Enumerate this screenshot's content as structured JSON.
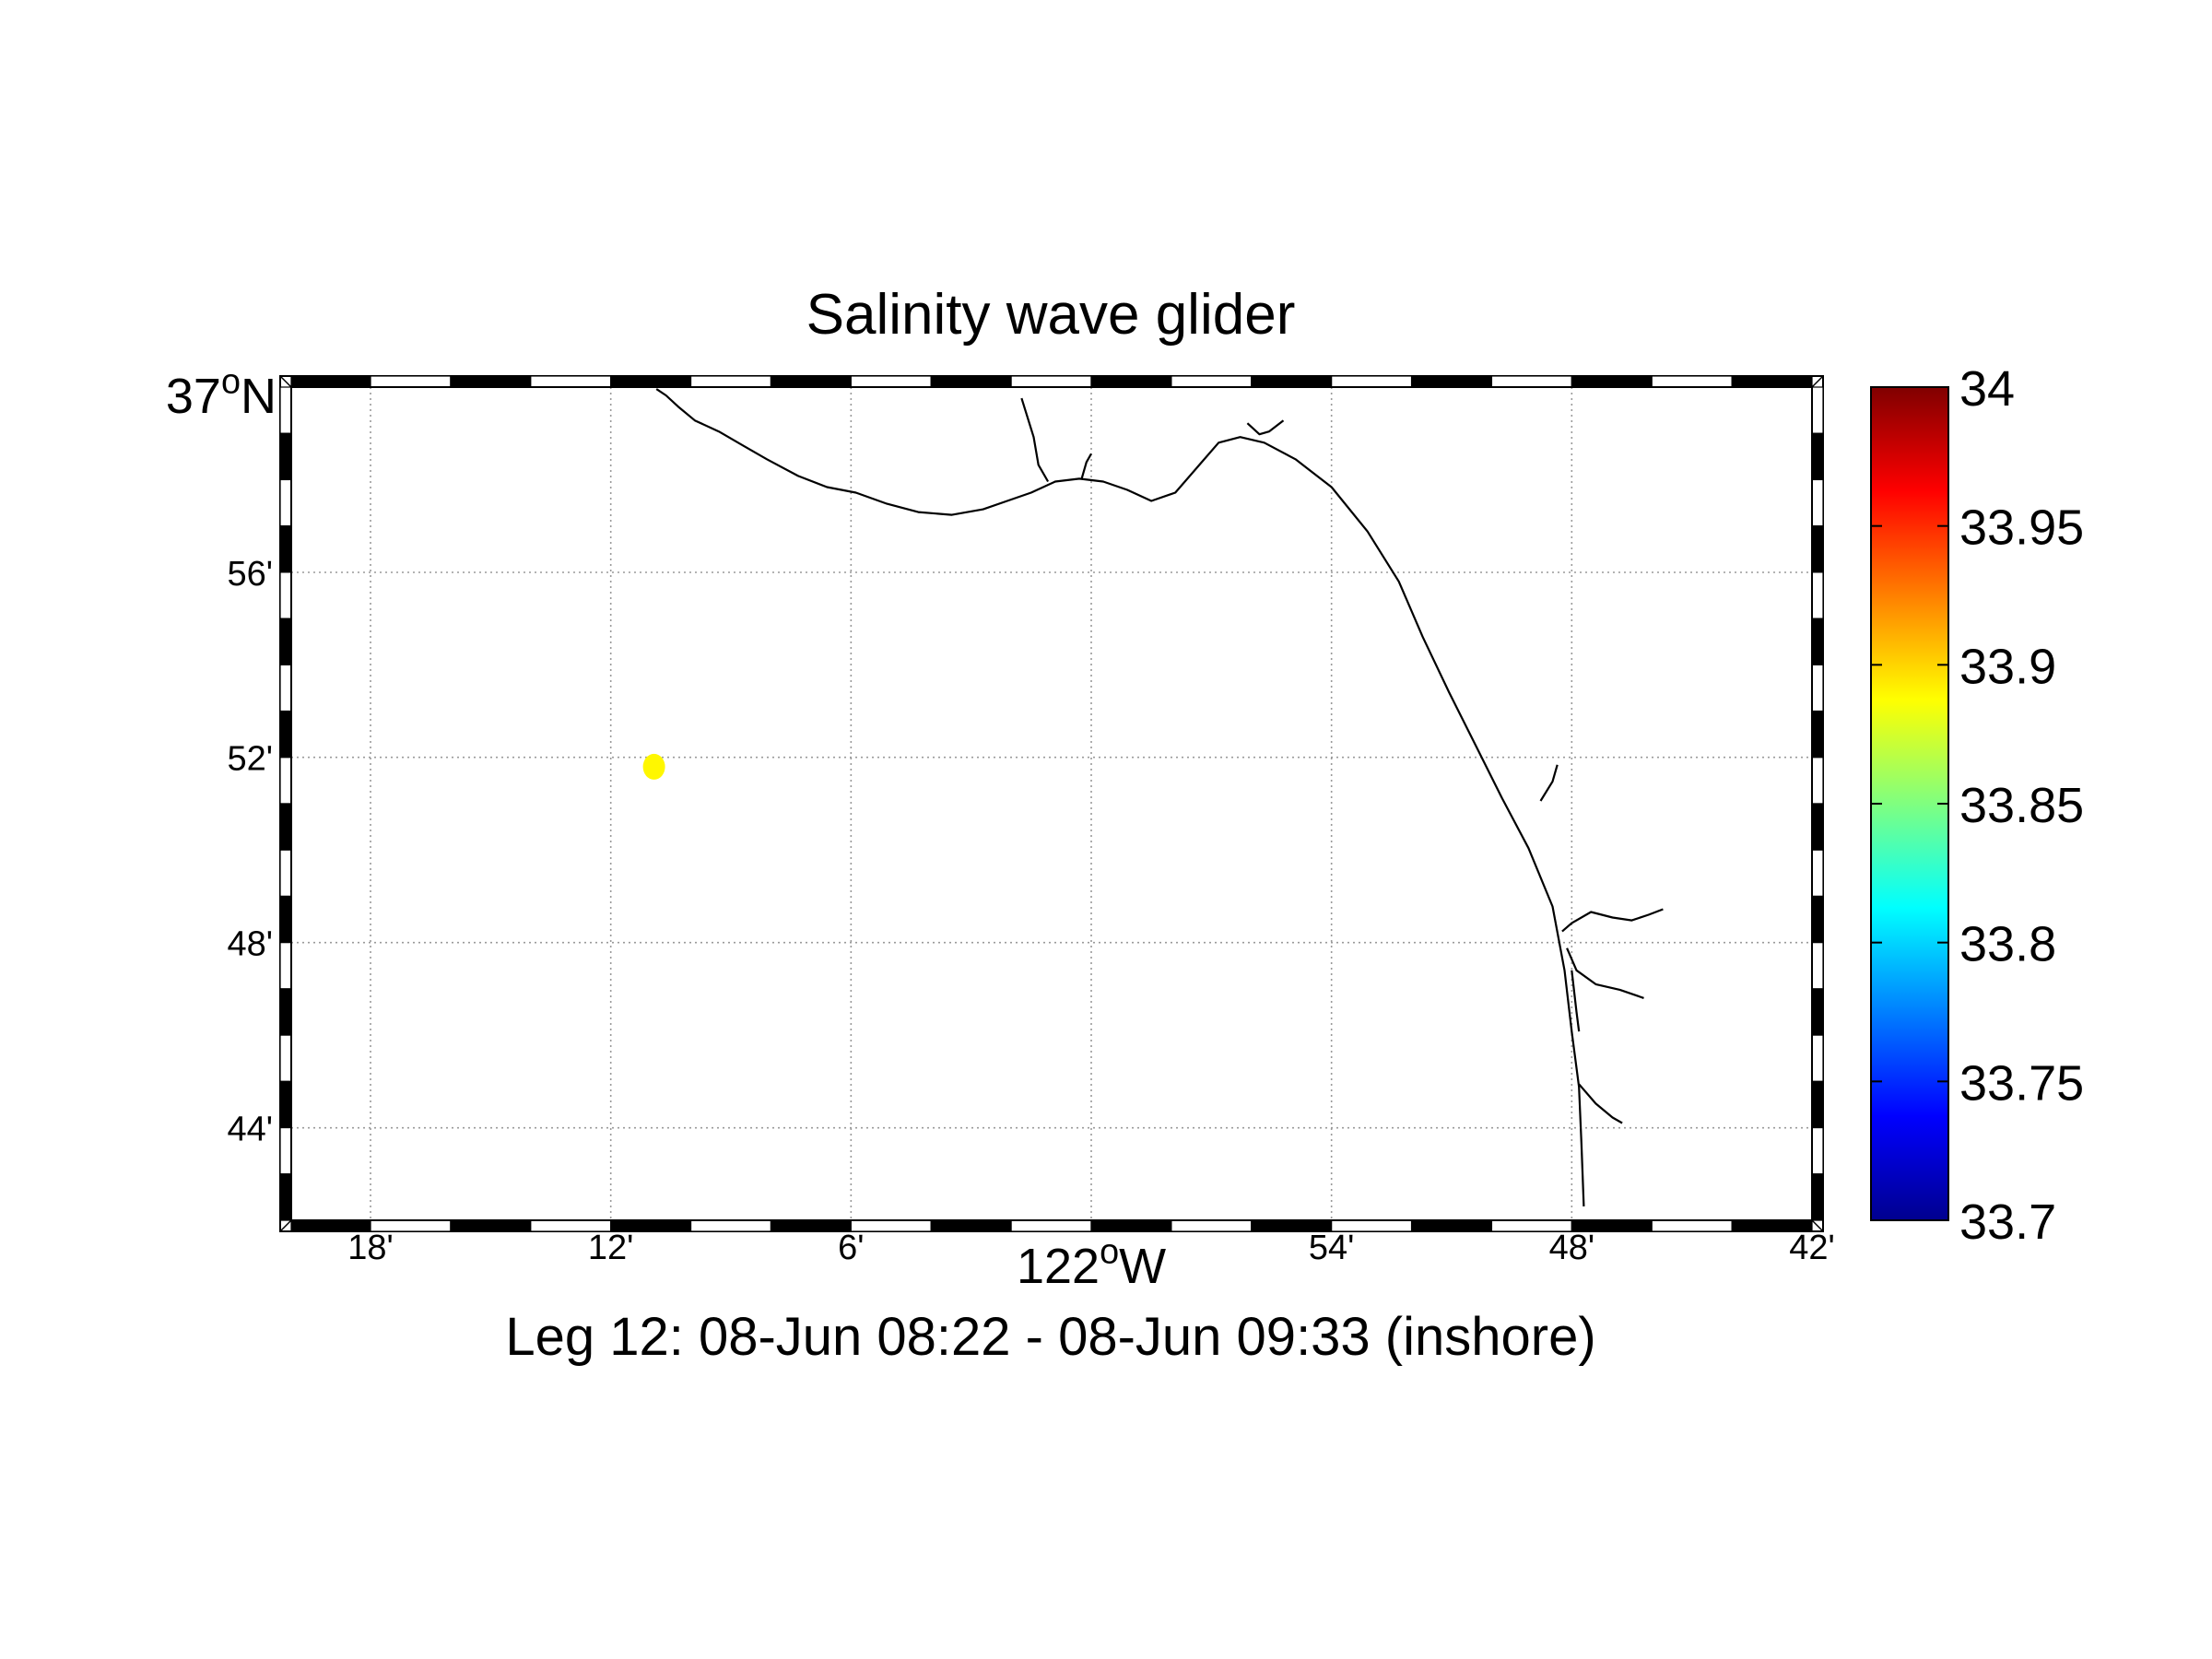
{
  "title": "Salinity wave glider",
  "subtitle": "Leg 12: 08-Jun 08:22 - 08-Jun 09:33 (inshore)",
  "map": {
    "lon_range": [
      -122.333,
      -121.7
    ],
    "lat_range": [
      36.7,
      37.0
    ],
    "grid": true,
    "x_ticks": [
      {
        "lon": -122.3,
        "label": "18'"
      },
      {
        "lon": -122.2,
        "label": "12'"
      },
      {
        "lon": -122.1,
        "label": "6'"
      },
      {
        "lon": -122.0,
        "label": "122",
        "sup": "o",
        "suffix": "W",
        "major": true
      },
      {
        "lon": -121.9,
        "label": "54'"
      },
      {
        "lon": -121.8,
        "label": "48'"
      },
      {
        "lon": -121.7,
        "label": "42'"
      }
    ],
    "y_ticks": [
      {
        "lat": 37.0,
        "label": "37",
        "sup": "o",
        "suffix": "N",
        "major": true
      },
      {
        "lat": 36.9333,
        "label": "56'"
      },
      {
        "lat": 36.8667,
        "label": "52'"
      },
      {
        "lat": 36.8,
        "label": "48'"
      },
      {
        "lat": 36.7333,
        "label": "44'"
      }
    ],
    "coastline": [
      [
        [
          -122.181,
          36.9993
        ],
        [
          -122.177,
          36.997
        ],
        [
          -122.172,
          36.993
        ],
        [
          -122.165,
          36.988
        ],
        [
          -122.155,
          36.984
        ],
        [
          -122.145,
          36.979
        ],
        [
          -122.135,
          36.974
        ],
        [
          -122.122,
          36.968
        ],
        [
          -122.11,
          36.964
        ],
        [
          -122.098,
          36.962
        ],
        [
          -122.085,
          36.958
        ],
        [
          -122.072,
          36.955
        ],
        [
          -122.058,
          36.954
        ],
        [
          -122.045,
          36.956
        ],
        [
          -122.035,
          36.959
        ],
        [
          -122.025,
          36.962
        ],
        [
          -122.015,
          36.966
        ],
        [
          -122.005,
          36.967
        ],
        [
          -121.995,
          36.966
        ],
        [
          -121.985,
          36.963
        ],
        [
          -121.975,
          36.959
        ],
        [
          -121.965,
          36.962
        ],
        [
          -121.955,
          36.972
        ],
        [
          -121.947,
          36.98
        ],
        [
          -121.938,
          36.982
        ],
        [
          -121.928,
          36.98
        ],
        [
          -121.915,
          36.974
        ],
        [
          -121.9,
          36.964
        ],
        [
          -121.885,
          36.948
        ],
        [
          -121.872,
          36.93
        ],
        [
          -121.862,
          36.91
        ],
        [
          -121.851,
          36.89
        ],
        [
          -121.84,
          36.871
        ],
        [
          -121.829,
          36.852
        ],
        [
          -121.818,
          36.834
        ],
        [
          -121.808,
          36.813
        ],
        [
          -121.803,
          36.79
        ],
        [
          -121.8,
          36.768
        ],
        [
          -121.797,
          36.748
        ],
        [
          -121.796,
          36.728
        ],
        [
          -121.795,
          36.705
        ]
      ],
      [
        [
          -122.029,
          36.996
        ],
        [
          -122.024,
          36.982
        ],
        [
          -122.022,
          36.972
        ],
        [
          -122.018,
          36.966
        ]
      ],
      [
        [
          -122.004,
          36.967
        ],
        [
          -122.002,
          36.973
        ],
        [
          -122.0,
          36.976
        ]
      ],
      [
        [
          -121.935,
          36.987
        ],
        [
          -121.93,
          36.983
        ],
        [
          -121.926,
          36.984
        ],
        [
          -121.92,
          36.988
        ]
      ],
      [
        [
          -121.813,
          36.851
        ],
        [
          -121.808,
          36.858
        ],
        [
          -121.806,
          36.864
        ]
      ],
      [
        [
          -121.804,
          36.804
        ],
        [
          -121.8,
          36.807
        ],
        [
          -121.792,
          36.811
        ],
        [
          -121.783,
          36.809
        ],
        [
          -121.775,
          36.808
        ],
        [
          -121.768,
          36.81
        ],
        [
          -121.762,
          36.812
        ]
      ],
      [
        [
          -121.802,
          36.798
        ],
        [
          -121.798,
          36.79
        ],
        [
          -121.79,
          36.785
        ],
        [
          -121.78,
          36.783
        ],
        [
          -121.77,
          36.78
        ]
      ],
      [
        [
          -121.8,
          36.79
        ],
        [
          -121.798,
          36.775
        ],
        [
          -121.797,
          36.768
        ]
      ],
      [
        [
          -121.797,
          36.749
        ],
        [
          -121.79,
          36.742
        ],
        [
          -121.783,
          36.737
        ],
        [
          -121.779,
          36.735
        ]
      ]
    ],
    "points": [
      {
        "lon": -122.182,
        "lat": 36.8633,
        "salinity": 33.89
      }
    ]
  },
  "colorbar": {
    "min": 33.7,
    "max": 34,
    "tick_labels": [
      "34",
      "33.95",
      "33.9",
      "33.85",
      "33.8",
      "33.75",
      "33.7"
    ],
    "colormap": "jet",
    "stops": [
      "#00008f",
      "#0000ff",
      "#00ffff",
      "#ffff00",
      "#ff0000",
      "#800000"
    ]
  }
}
